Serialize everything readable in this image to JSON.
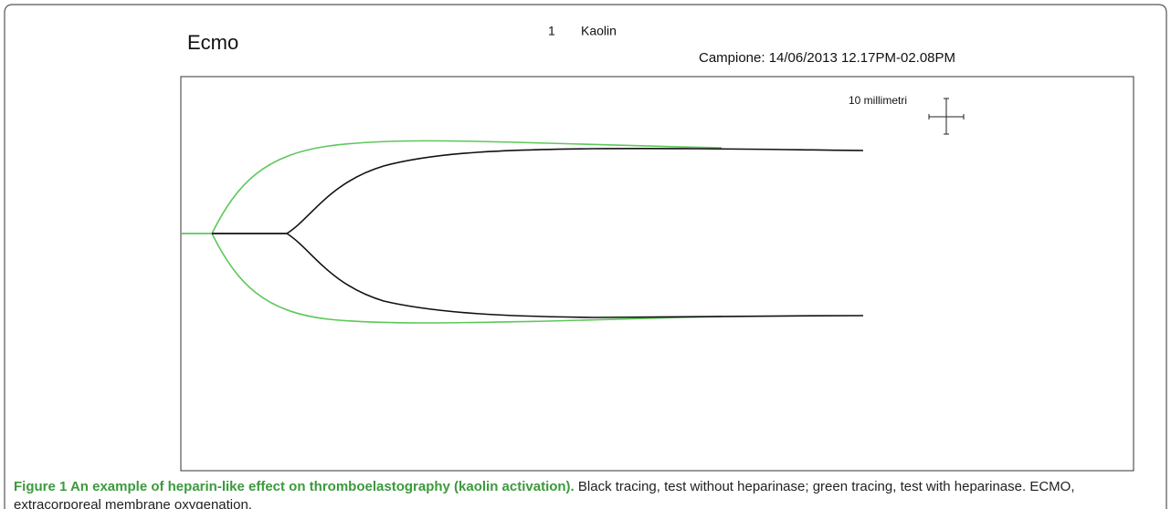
{
  "figure": {
    "title": "Ecmo",
    "test_number": "1",
    "activator": "Kaolin",
    "sample": "Campione: 14/06/2013 12.17PM-02.08PM",
    "scale_label": "10 millimetri",
    "caption_bold": "Figure 1 An example of heparin-like effect on thromboelastography (kaolin activation).",
    "caption_text": "Black tracing, test without heparinase; green tracing, test with heparinase. ECMO, extracorporeal membrane oxygenation."
  }
}
